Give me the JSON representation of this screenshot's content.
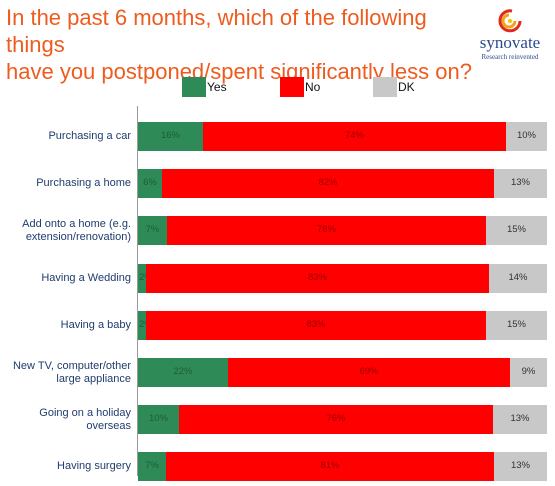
{
  "header": {
    "title_line1": "In the past 6 months, which of the following things",
    "title_line2": "have you postponed/spent significantly less on?",
    "logo_name": "synovate",
    "logo_tagline": "Research reinvented"
  },
  "colors": {
    "title": "#ef5b1f",
    "yes": "#2e8b57",
    "no": "#ff0000",
    "dk": "#c8c8c8"
  },
  "chart_data": {
    "type": "bar",
    "orientation": "horizontal",
    "stacked": "percent",
    "title": "In the past 6 months, which of the following things have you postponed/spent significantly less on?",
    "legend_position": "top",
    "grid": false,
    "categories": [
      [
        "Purchasing a car"
      ],
      [
        "Purchasing a home"
      ],
      [
        "Add onto a home (e.g.",
        "extension/renovation)"
      ],
      [
        "Having a Wedding"
      ],
      [
        "Having a baby"
      ],
      [
        "New TV, computer/other",
        "large appliance"
      ],
      [
        "Going on a holiday",
        "overseas"
      ],
      [
        "Having surgery"
      ]
    ],
    "series": [
      {
        "name": "Yes",
        "values": [
          16,
          6,
          7,
          2,
          2,
          22,
          10,
          7
        ],
        "labels": [
          "16%",
          "6%",
          "7%",
          "2%",
          "2%",
          "22%",
          "10%",
          "7%"
        ]
      },
      {
        "name": "No",
        "values": [
          74,
          82,
          78,
          83,
          83,
          69,
          76,
          81
        ],
        "labels": [
          "74%",
          "82%",
          "78%",
          "83%",
          "83%",
          "69%",
          "76%",
          "81%"
        ]
      },
      {
        "name": "DK",
        "values": [
          10,
          13,
          15,
          14,
          15,
          9,
          13,
          13
        ],
        "labels": [
          "10%",
          "13%",
          "15%",
          "14%",
          "15%",
          "9%",
          "13%",
          "13%"
        ]
      }
    ]
  }
}
